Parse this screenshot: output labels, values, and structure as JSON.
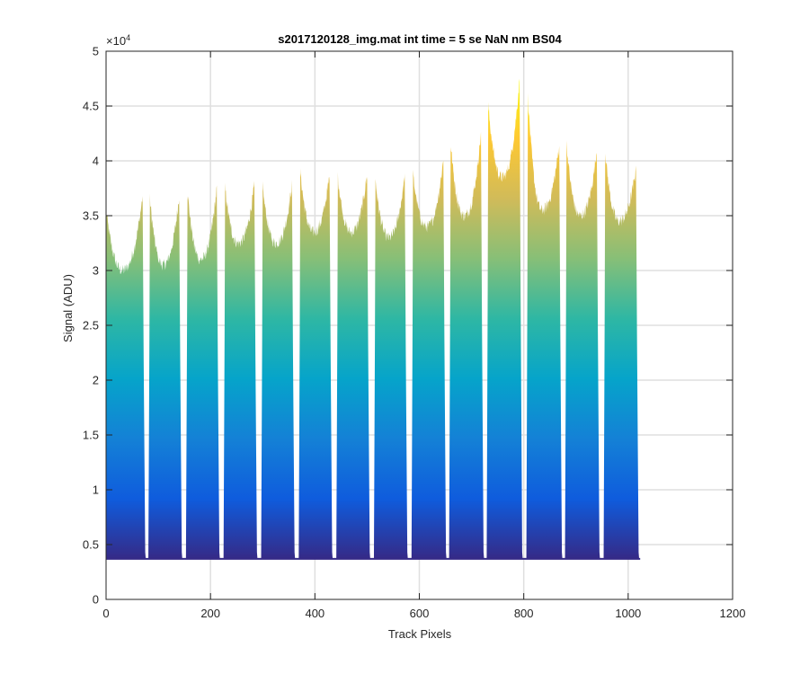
{
  "chart_data": {
    "type": "area",
    "title": "s2017120128_img.mat int time = 5 se  NaN nm BS04",
    "xlabel": "Track Pixels",
    "ylabel": "Signal (ADU)",
    "y_exponent_label": "×10",
    "y_exponent_power": "4",
    "xlim": [
      0,
      1200
    ],
    "ylim": [
      0,
      50000
    ],
    "xticks": [
      0,
      200,
      400,
      600,
      800,
      1000,
      1200
    ],
    "xtick_labels": [
      "0",
      "200",
      "400",
      "600",
      "800",
      "1000",
      "1200"
    ],
    "yticks": [
      0,
      5000,
      10000,
      15000,
      20000,
      25000,
      30000,
      35000,
      40000,
      45000,
      50000
    ],
    "ytick_labels": [
      "0",
      "0.5",
      "1",
      "1.5",
      "2",
      "2.5",
      "3",
      "3.5",
      "4",
      "4.5",
      "5"
    ],
    "grid": true,
    "colormap": [
      "#352a87",
      "#0f5cdd",
      "#1481d6",
      "#06a4ca",
      "#2eb7a4",
      "#87bf77",
      "#d1bb59",
      "#fec832",
      "#f9fb0e"
    ],
    "baseline": 3700,
    "x_start": 0,
    "x_end": 1023,
    "segments": [
      {
        "x0": 0,
        "x1": 70,
        "start": 35500,
        "min": 30000,
        "end": 36800
      },
      {
        "x0": 84,
        "x1": 140,
        "start": 36500,
        "min": 30500,
        "end": 36800
      },
      {
        "x0": 156,
        "x1": 212,
        "start": 37200,
        "min": 31000,
        "end": 37500
      },
      {
        "x0": 228,
        "x1": 284,
        "start": 37500,
        "min": 32500,
        "end": 37800
      },
      {
        "x0": 300,
        "x1": 356,
        "start": 37600,
        "min": 32500,
        "end": 37800
      },
      {
        "x0": 372,
        "x1": 428,
        "start": 39000,
        "min": 33500,
        "end": 38700
      },
      {
        "x0": 444,
        "x1": 500,
        "start": 38500,
        "min": 33500,
        "end": 38800
      },
      {
        "x0": 516,
        "x1": 572,
        "start": 38200,
        "min": 33000,
        "end": 38700
      },
      {
        "x0": 588,
        "x1": 646,
        "start": 38700,
        "min": 34000,
        "end": 40200
      },
      {
        "x0": 660,
        "x1": 718,
        "start": 41500,
        "min": 35000,
        "end": 42500
      },
      {
        "x0": 732,
        "x1": 792,
        "start": 45000,
        "min": 38500,
        "end": 47500
      },
      {
        "x0": 808,
        "x1": 868,
        "start": 45800,
        "min": 35500,
        "end": 41500
      },
      {
        "x0": 882,
        "x1": 940,
        "start": 41500,
        "min": 35000,
        "end": 41000
      },
      {
        "x0": 956,
        "x1": 1015,
        "start": 40800,
        "min": 34500,
        "end": 39300
      }
    ]
  }
}
